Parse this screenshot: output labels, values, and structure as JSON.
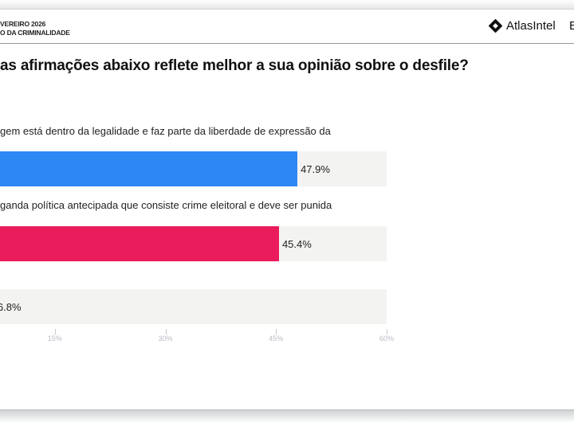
{
  "header": {
    "line1": "VEREIRO 2026",
    "line2": "O DA CRIMINALIDADE",
    "brand": "AtlasIntel",
    "edge_text": "E"
  },
  "chart_data": {
    "type": "bar",
    "orientation": "horizontal",
    "title": "as afirmações abaixo reflete melhor a sua opinião sobre o desfile?",
    "categories": [
      "gem está dentro da legalidade e faz parte da liberdade de expressão da",
      "ganda política antecipada que consiste crime eleitoral e deve ser punida",
      ""
    ],
    "values": [
      47.9,
      45.4,
      6.8
    ],
    "value_labels": [
      "47.9%",
      "45.4%",
      "6.8%"
    ],
    "colors": [
      "#2d87f5",
      "#ea1c5b",
      "#888888"
    ],
    "track_color": "#f3f3f2",
    "xlim": [
      0,
      60
    ],
    "ticks": [
      15,
      30,
      45,
      60
    ],
    "tick_labels": [
      "15%",
      "30%",
      "45%",
      "60%"
    ],
    "xlabel": "",
    "ylabel": "",
    "grid": false
  }
}
